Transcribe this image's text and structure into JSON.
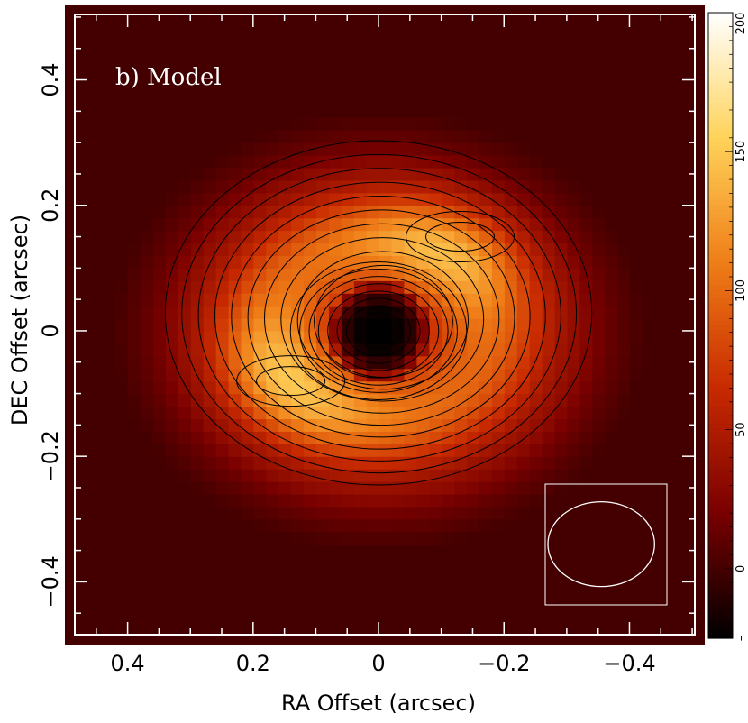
{
  "chart_data": {
    "type": "heatmap",
    "panel_label": "b) Model",
    "xlabel": "RA Offset (arcsec)",
    "ylabel": "DEC Offset (arcsec)",
    "xlim": [
      0.5,
      -0.52
    ],
    "ylim": [
      -0.5,
      0.52
    ],
    "x_reversed": true,
    "x_ticks": [
      {
        "value": 0.4,
        "label": "0.4"
      },
      {
        "value": 0.2,
        "label": "0.2"
      },
      {
        "value": 0,
        "label": "0"
      },
      {
        "value": -0.2,
        "label": "−0.2"
      },
      {
        "value": -0.4,
        "label": "−0.4"
      }
    ],
    "y_ticks": [
      {
        "value": 0.4,
        "label": "0.4"
      },
      {
        "value": 0.2,
        "label": "0.2"
      },
      {
        "value": 0,
        "label": "0"
      },
      {
        "value": -0.2,
        "label": "−0.2"
      },
      {
        "value": -0.4,
        "label": "−0.4"
      }
    ],
    "colorbar": {
      "range": [
        -25,
        200
      ],
      "ticks": [
        {
          "value": 200,
          "label": "200"
        },
        {
          "value": 150,
          "label": "150"
        },
        {
          "value": 100,
          "label": "100"
        },
        {
          "value": 50,
          "label": "50"
        },
        {
          "value": 0,
          "label": "0"
        },
        {
          "value": -25,
          "label": "–"
        }
      ]
    },
    "colormap": [
      "#000000",
      "#7a0000",
      "#c82a00",
      "#ef7d17",
      "#ffd35a",
      "#ffffff"
    ],
    "model": {
      "background_level": 0,
      "disk_center": [
        0.0,
        0.0
      ],
      "disk_radius_ra": 0.34,
      "disk_radius_dec": 0.28,
      "central_hole_level": -25,
      "arm_peak_level": 140,
      "arm_peak_positions": [
        [
          -0.13,
          0.15
        ],
        [
          0.14,
          -0.08
        ]
      ]
    },
    "beam": {
      "center": [
        -0.355,
        -0.34
      ],
      "major_axis": 0.17,
      "minor_axis": 0.135,
      "color": "#ffffff"
    },
    "contour_color": "#000000",
    "frame_color": "#ffffff"
  }
}
